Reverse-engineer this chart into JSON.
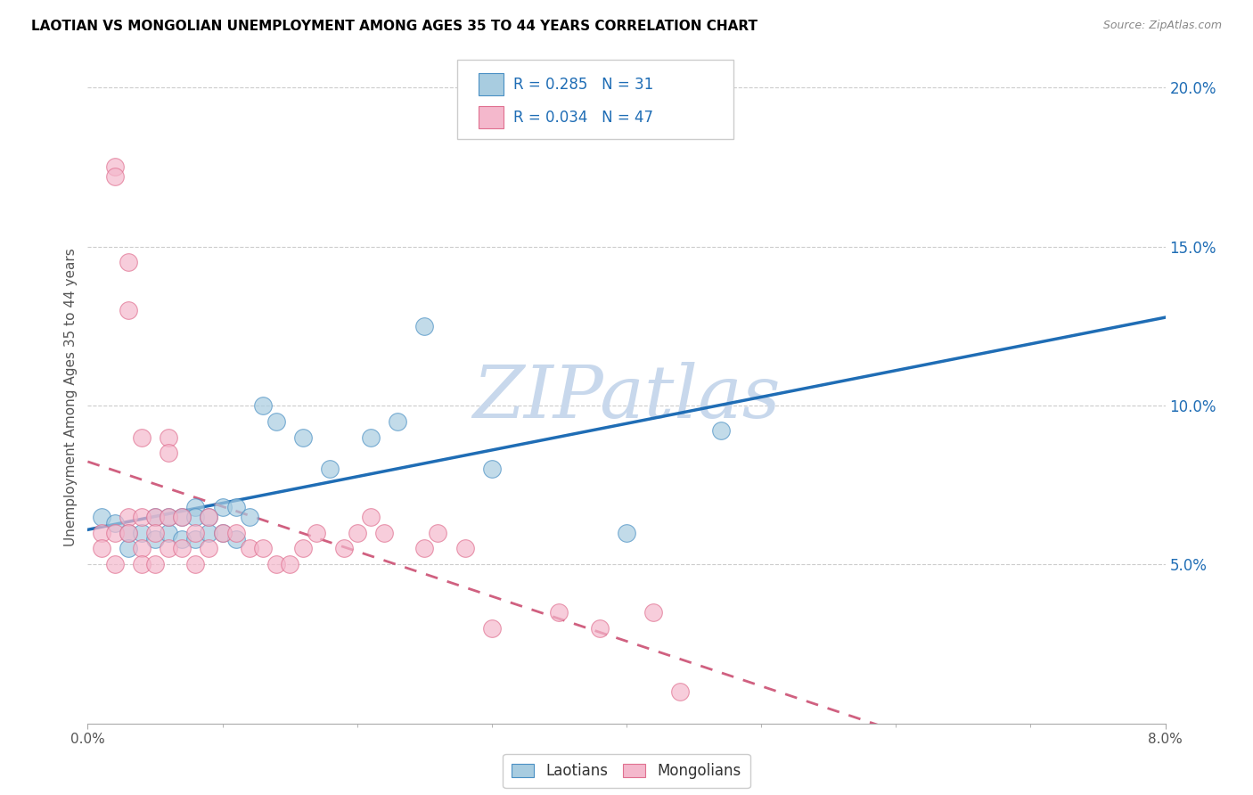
{
  "title": "LAOTIAN VS MONGOLIAN UNEMPLOYMENT AMONG AGES 35 TO 44 YEARS CORRELATION CHART",
  "source": "Source: ZipAtlas.com",
  "ylabel": "Unemployment Among Ages 35 to 44 years",
  "xmin": 0.0,
  "xmax": 0.08,
  "ymin": 0.0,
  "ymax": 0.205,
  "yticks": [
    0.05,
    0.1,
    0.15,
    0.2
  ],
  "ytick_labels": [
    "5.0%",
    "10.0%",
    "15.0%",
    "20.0%"
  ],
  "laotian_color": "#a8cce0",
  "laotian_edge": "#4a90c4",
  "mongolian_color": "#f4b8cc",
  "mongolian_edge": "#e07090",
  "trendline_laotian": "#1f6db5",
  "trendline_mongolian": "#d06080",
  "r1": "0.285",
  "n1": "31",
  "r2": "0.034",
  "n2": "47",
  "laotians_x": [
    0.001,
    0.002,
    0.003,
    0.003,
    0.004,
    0.005,
    0.005,
    0.006,
    0.006,
    0.007,
    0.007,
    0.008,
    0.008,
    0.008,
    0.009,
    0.009,
    0.01,
    0.01,
    0.011,
    0.011,
    0.012,
    0.013,
    0.014,
    0.016,
    0.018,
    0.021,
    0.023,
    0.025,
    0.03,
    0.04,
    0.047
  ],
  "laotians_y": [
    0.065,
    0.063,
    0.06,
    0.055,
    0.06,
    0.058,
    0.065,
    0.06,
    0.065,
    0.058,
    0.065,
    0.068,
    0.065,
    0.058,
    0.065,
    0.06,
    0.068,
    0.06,
    0.058,
    0.068,
    0.065,
    0.1,
    0.095,
    0.09,
    0.08,
    0.09,
    0.095,
    0.125,
    0.08,
    0.06,
    0.092
  ],
  "mongolians_x": [
    0.001,
    0.001,
    0.002,
    0.002,
    0.002,
    0.002,
    0.003,
    0.003,
    0.003,
    0.003,
    0.004,
    0.004,
    0.004,
    0.004,
    0.005,
    0.005,
    0.005,
    0.006,
    0.006,
    0.006,
    0.006,
    0.007,
    0.007,
    0.008,
    0.008,
    0.009,
    0.009,
    0.01,
    0.011,
    0.012,
    0.013,
    0.014,
    0.015,
    0.016,
    0.017,
    0.019,
    0.02,
    0.021,
    0.022,
    0.025,
    0.026,
    0.028,
    0.03,
    0.035,
    0.038,
    0.042,
    0.044
  ],
  "mongolians_y": [
    0.06,
    0.055,
    0.175,
    0.172,
    0.06,
    0.05,
    0.145,
    0.13,
    0.065,
    0.06,
    0.09,
    0.065,
    0.055,
    0.05,
    0.065,
    0.06,
    0.05,
    0.09,
    0.085,
    0.065,
    0.055,
    0.065,
    0.055,
    0.06,
    0.05,
    0.065,
    0.055,
    0.06,
    0.06,
    0.055,
    0.055,
    0.05,
    0.05,
    0.055,
    0.06,
    0.055,
    0.06,
    0.065,
    0.06,
    0.055,
    0.06,
    0.055,
    0.03,
    0.035,
    0.03,
    0.035,
    0.01
  ]
}
